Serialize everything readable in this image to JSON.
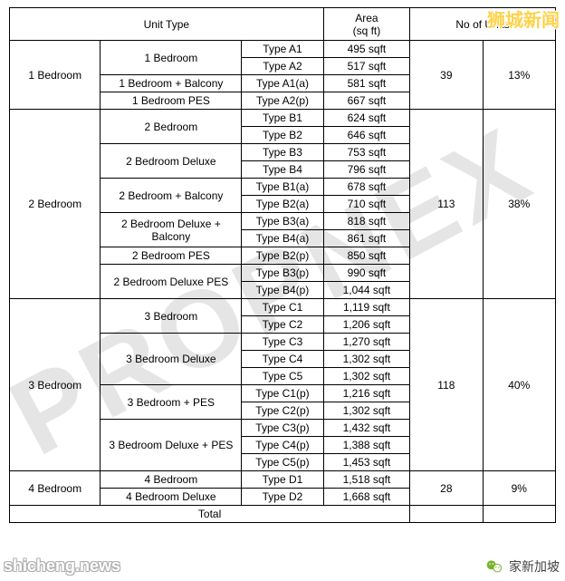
{
  "watermark_text": "PROPNEX",
  "overlays": {
    "bottom_left": "shicheng.news",
    "top_right": "狮城新闻",
    "bottom_right": "家新加坡"
  },
  "table": {
    "headers": {
      "unit_type": "Unit Type",
      "area": "Area\n(sq ft)",
      "no_of_units": "No of Units"
    },
    "total_label": "Total",
    "groups": [
      {
        "category": "1 Bedroom",
        "units": "39",
        "pct": "13%",
        "subs": [
          {
            "label": "1 Bedroom",
            "rows": [
              {
                "type": "Type A1",
                "area": "495 sqft"
              },
              {
                "type": "Type A2",
                "area": "517 sqft"
              }
            ]
          },
          {
            "label": "1 Bedroom + Balcony",
            "rows": [
              {
                "type": "Type A1(a)",
                "area": "581 sqft"
              }
            ]
          },
          {
            "label": "1 Bedroom PES",
            "rows": [
              {
                "type": "Type A2(p)",
                "area": "667 sqft"
              }
            ]
          }
        ]
      },
      {
        "category": "2 Bedroom",
        "units": "113",
        "pct": "38%",
        "subs": [
          {
            "label": "2 Bedroom",
            "rows": [
              {
                "type": "Type B1",
                "area": "624 sqft"
              },
              {
                "type": "Type B2",
                "area": "646 sqft"
              }
            ]
          },
          {
            "label": "2 Bedroom Deluxe",
            "rows": [
              {
                "type": "Type B3",
                "area": "753 sqft"
              },
              {
                "type": "Type B4",
                "area": "796 sqft"
              }
            ]
          },
          {
            "label": "2 Bedroom + Balcony",
            "rows": [
              {
                "type": "Type B1(a)",
                "area": "678 sqft"
              },
              {
                "type": "Type B2(a)",
                "area": "710 sqft"
              }
            ]
          },
          {
            "label": "2 Bedroom Deluxe + Balcony",
            "rows": [
              {
                "type": "Type B3(a)",
                "area": "818 sqft"
              },
              {
                "type": "Type B4(a)",
                "area": "861 sqft"
              }
            ]
          },
          {
            "label": "2 Bedroom PES",
            "rows": [
              {
                "type": "Type B2(p)",
                "area": "850 sqft"
              }
            ]
          },
          {
            "label": "2 Bedroom Deluxe PES",
            "rows": [
              {
                "type": "Type B3(p)",
                "area": "990 sqft"
              },
              {
                "type": "Type B4(p)",
                "area": "1,044 sqft"
              }
            ]
          }
        ]
      },
      {
        "category": "3 Bedroom",
        "units": "118",
        "pct": "40%",
        "subs": [
          {
            "label": "3 Bedroom",
            "rows": [
              {
                "type": "Type C1",
                "area": "1,119 sqft"
              },
              {
                "type": "Type C2",
                "area": "1,206 sqft"
              }
            ]
          },
          {
            "label": "3 Bedroom Deluxe",
            "rows": [
              {
                "type": "Type C3",
                "area": "1,270 sqft"
              },
              {
                "type": "Type C4",
                "area": "1,302 sqft"
              },
              {
                "type": "Type C5",
                "area": "1,302 sqft"
              }
            ]
          },
          {
            "label": "3 Bedroom + PES",
            "rows": [
              {
                "type": "Type C1(p)",
                "area": "1,216 sqft"
              },
              {
                "type": "Type C2(p)",
                "area": "1,302 sqft"
              }
            ]
          },
          {
            "label": "3 Bedroom Deluxe + PES",
            "rows": [
              {
                "type": "Type C3(p)",
                "area": "1,432 sqft"
              },
              {
                "type": "Type C4(p)",
                "area": "1,388 sqft"
              },
              {
                "type": "Type C5(p)",
                "area": "1,453 sqft"
              }
            ]
          }
        ]
      },
      {
        "category": "4 Bedroom",
        "units": "28",
        "pct": "9%",
        "subs": [
          {
            "label": "4 Bedroom",
            "rows": [
              {
                "type": "Type D1",
                "area": "1,518 sqft"
              }
            ]
          },
          {
            "label": "4 Bedroom Deluxe",
            "rows": [
              {
                "type": "Type D2",
                "area": "1,668 sqft"
              }
            ]
          }
        ]
      }
    ]
  }
}
